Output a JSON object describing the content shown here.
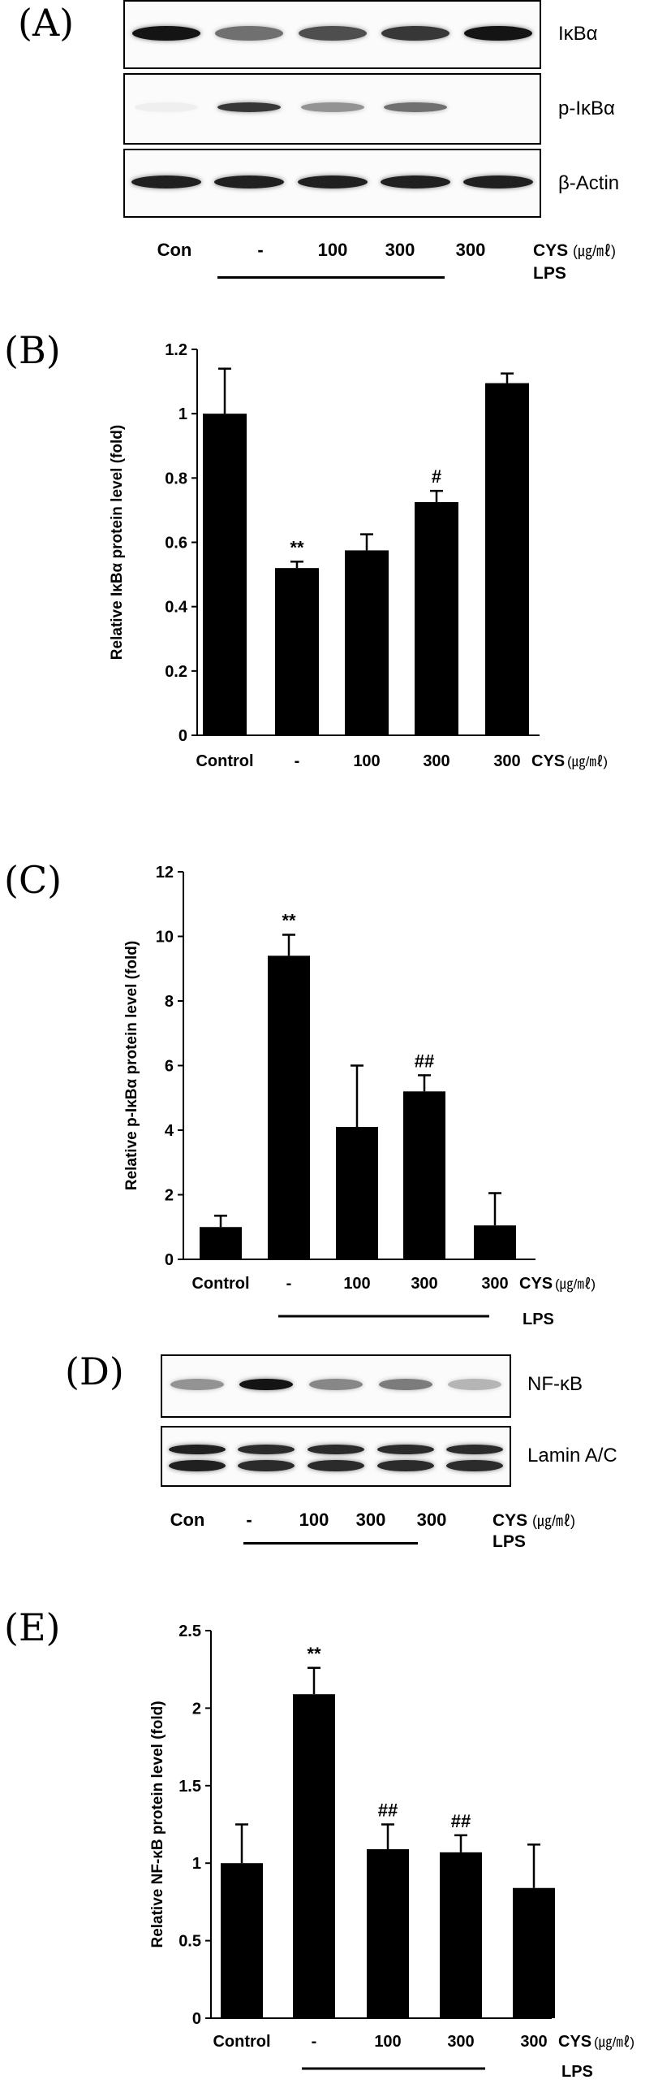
{
  "panels": {
    "A": "(A)",
    "B": "(B)",
    "C": "(C)",
    "D": "(D)",
    "E": "(E)"
  },
  "treatment": {
    "cys_label": "CYS",
    "cys_unit": "(㎍/㎖)",
    "lps_label": "LPS"
  },
  "blot_a": {
    "lanes": [
      "Con",
      "-",
      "100",
      "300",
      "300"
    ],
    "rows": [
      "IκBα",
      "p-IκBα",
      "β-Actin"
    ],
    "intensity": [
      [
        1.0,
        0.6,
        0.75,
        0.85,
        1.0
      ],
      [
        0.05,
        0.85,
        0.45,
        0.6,
        0.0
      ],
      [
        0.95,
        0.95,
        0.95,
        0.95,
        0.95
      ]
    ]
  },
  "blot_d": {
    "lanes": [
      "Con",
      "-",
      "100",
      "300",
      "300"
    ],
    "rows": [
      "NF-κB",
      "Lamin A/C"
    ],
    "intensity": [
      [
        0.45,
        1.0,
        0.5,
        0.55,
        0.3
      ],
      [
        0.95,
        0.9,
        0.9,
        0.9,
        0.9
      ]
    ]
  },
  "chart_data": [
    {
      "type": "bar",
      "panel": "B",
      "ylabel": "Relative IκBα protein level (fold)",
      "categories": [
        "Control",
        "-",
        "100",
        "300",
        "300"
      ],
      "values": [
        1.0,
        0.52,
        0.575,
        0.725,
        1.095
      ],
      "errors": [
        0.14,
        0.02,
        0.05,
        0.035,
        0.03
      ],
      "annotations": [
        "",
        "**",
        "",
        "#",
        ""
      ],
      "ylim": [
        0,
        1.2
      ],
      "yticks": [
        "0",
        "0.2",
        "0.4",
        "0.6",
        "0.8",
        "1",
        "1.2"
      ],
      "bar_color": "#000000"
    },
    {
      "type": "bar",
      "panel": "C",
      "ylabel": "Relative p-IκBα protein level (fold)",
      "categories": [
        "Control",
        "-",
        "100",
        "300",
        "300"
      ],
      "values": [
        1.0,
        9.4,
        4.1,
        5.2,
        1.05
      ],
      "errors": [
        0.35,
        0.65,
        1.9,
        0.5,
        1.0
      ],
      "annotations": [
        "",
        "**",
        "",
        "##",
        ""
      ],
      "ylim": [
        0,
        12
      ],
      "yticks": [
        "0",
        "2",
        "4",
        "6",
        "8",
        "10",
        "12"
      ],
      "bar_color": "#000000"
    },
    {
      "type": "bar",
      "panel": "E",
      "ylabel": "Relative NF-κB protein level (fold)",
      "categories": [
        "Control",
        "-",
        "100",
        "300",
        "300"
      ],
      "values": [
        1.0,
        2.09,
        1.09,
        1.07,
        0.84
      ],
      "errors": [
        0.25,
        0.17,
        0.16,
        0.11,
        0.28
      ],
      "annotations": [
        "",
        "**",
        "##",
        "##",
        ""
      ],
      "ylim": [
        0,
        2.5
      ],
      "yticks": [
        "0",
        "0.5",
        "1",
        "1.5",
        "2",
        "2.5"
      ],
      "bar_color": "#000000"
    }
  ]
}
